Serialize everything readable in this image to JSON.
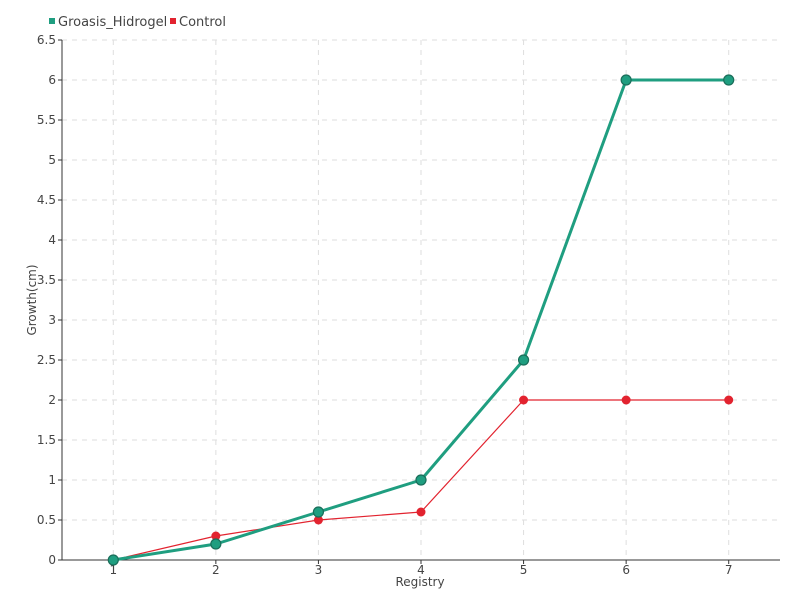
{
  "chart_data": {
    "type": "line",
    "title": "",
    "xlabel": "Registry",
    "ylabel": "Growth(cm)",
    "x": [
      1,
      2,
      3,
      4,
      5,
      6,
      7
    ],
    "x_ticks": [
      "1",
      "2",
      "3",
      "4",
      "5",
      "6",
      "7"
    ],
    "xlim": [
      0.5,
      7.5
    ],
    "ylim": [
      0,
      6.5
    ],
    "y_ticks": [
      "0",
      "0.5",
      "1",
      "1.5",
      "2",
      "2.5",
      "3",
      "3.5",
      "4",
      "4.5",
      "5",
      "5.5",
      "6",
      "6.5"
    ],
    "grid": true,
    "legend_position": "top-left",
    "series": [
      {
        "name": "Groasis_Hidrogel",
        "color": "#1f9e80",
        "values": [
          0,
          0.2,
          0.6,
          1.0,
          2.5,
          6.0,
          6.0
        ]
      },
      {
        "name": "Control",
        "color": "#e2232f",
        "values": [
          0,
          0.3,
          0.5,
          0.6,
          2.0,
          2.0,
          2.0
        ]
      }
    ]
  }
}
